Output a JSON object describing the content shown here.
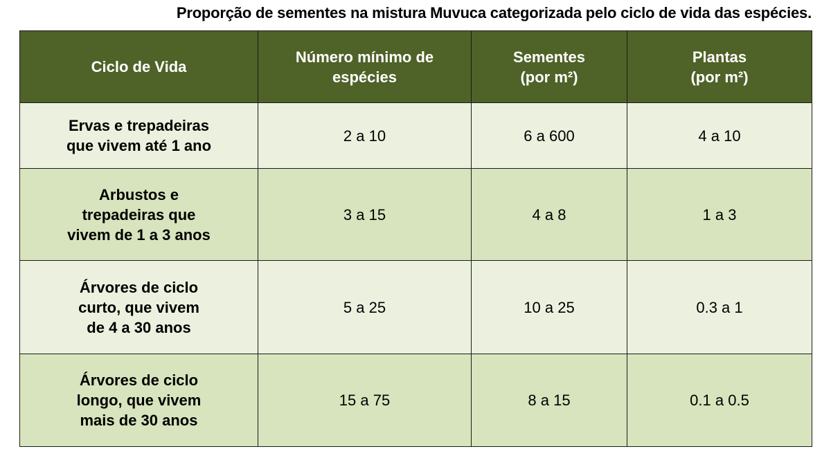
{
  "title": "Proporção de sementes na mistura Muvuca categorizada pelo ciclo de vida das espécies.",
  "table": {
    "headers": [
      [
        "Ciclo de Vida"
      ],
      [
        "Número mínimo de",
        "espécies"
      ],
      [
        "Sementes",
        "(por m²)"
      ],
      [
        "Plantas",
        "(por m²)"
      ]
    ],
    "rows": [
      {
        "ciclo": [
          "Ervas e trepadeiras",
          "que vivem até 1 ano"
        ],
        "especies": "2 a 10",
        "sementes": "6 a 600",
        "plantas": "4 a 10"
      },
      {
        "ciclo": [
          "Arbustos e",
          "trepadeiras que",
          "vivem de 1 a 3 anos"
        ],
        "especies": "3 a 15",
        "sementes": "4 a 8",
        "plantas": "1 a 3"
      },
      {
        "ciclo": [
          "Árvores de ciclo",
          "curto, que vivem",
          "de 4 a 30 anos"
        ],
        "especies": "5 a 25",
        "sementes": "10 a 25",
        "plantas": "0.3 a 1"
      },
      {
        "ciclo": [
          "Árvores de ciclo",
          "longo, que vivem",
          "mais de 30 anos"
        ],
        "especies": "15 a 75",
        "sementes": "8 a 15",
        "plantas": "0.1 a 0.5"
      }
    ]
  },
  "colors": {
    "header_bg": "#4f6228",
    "row_light": "#ebf1de",
    "row_dark": "#d7e4bd"
  }
}
